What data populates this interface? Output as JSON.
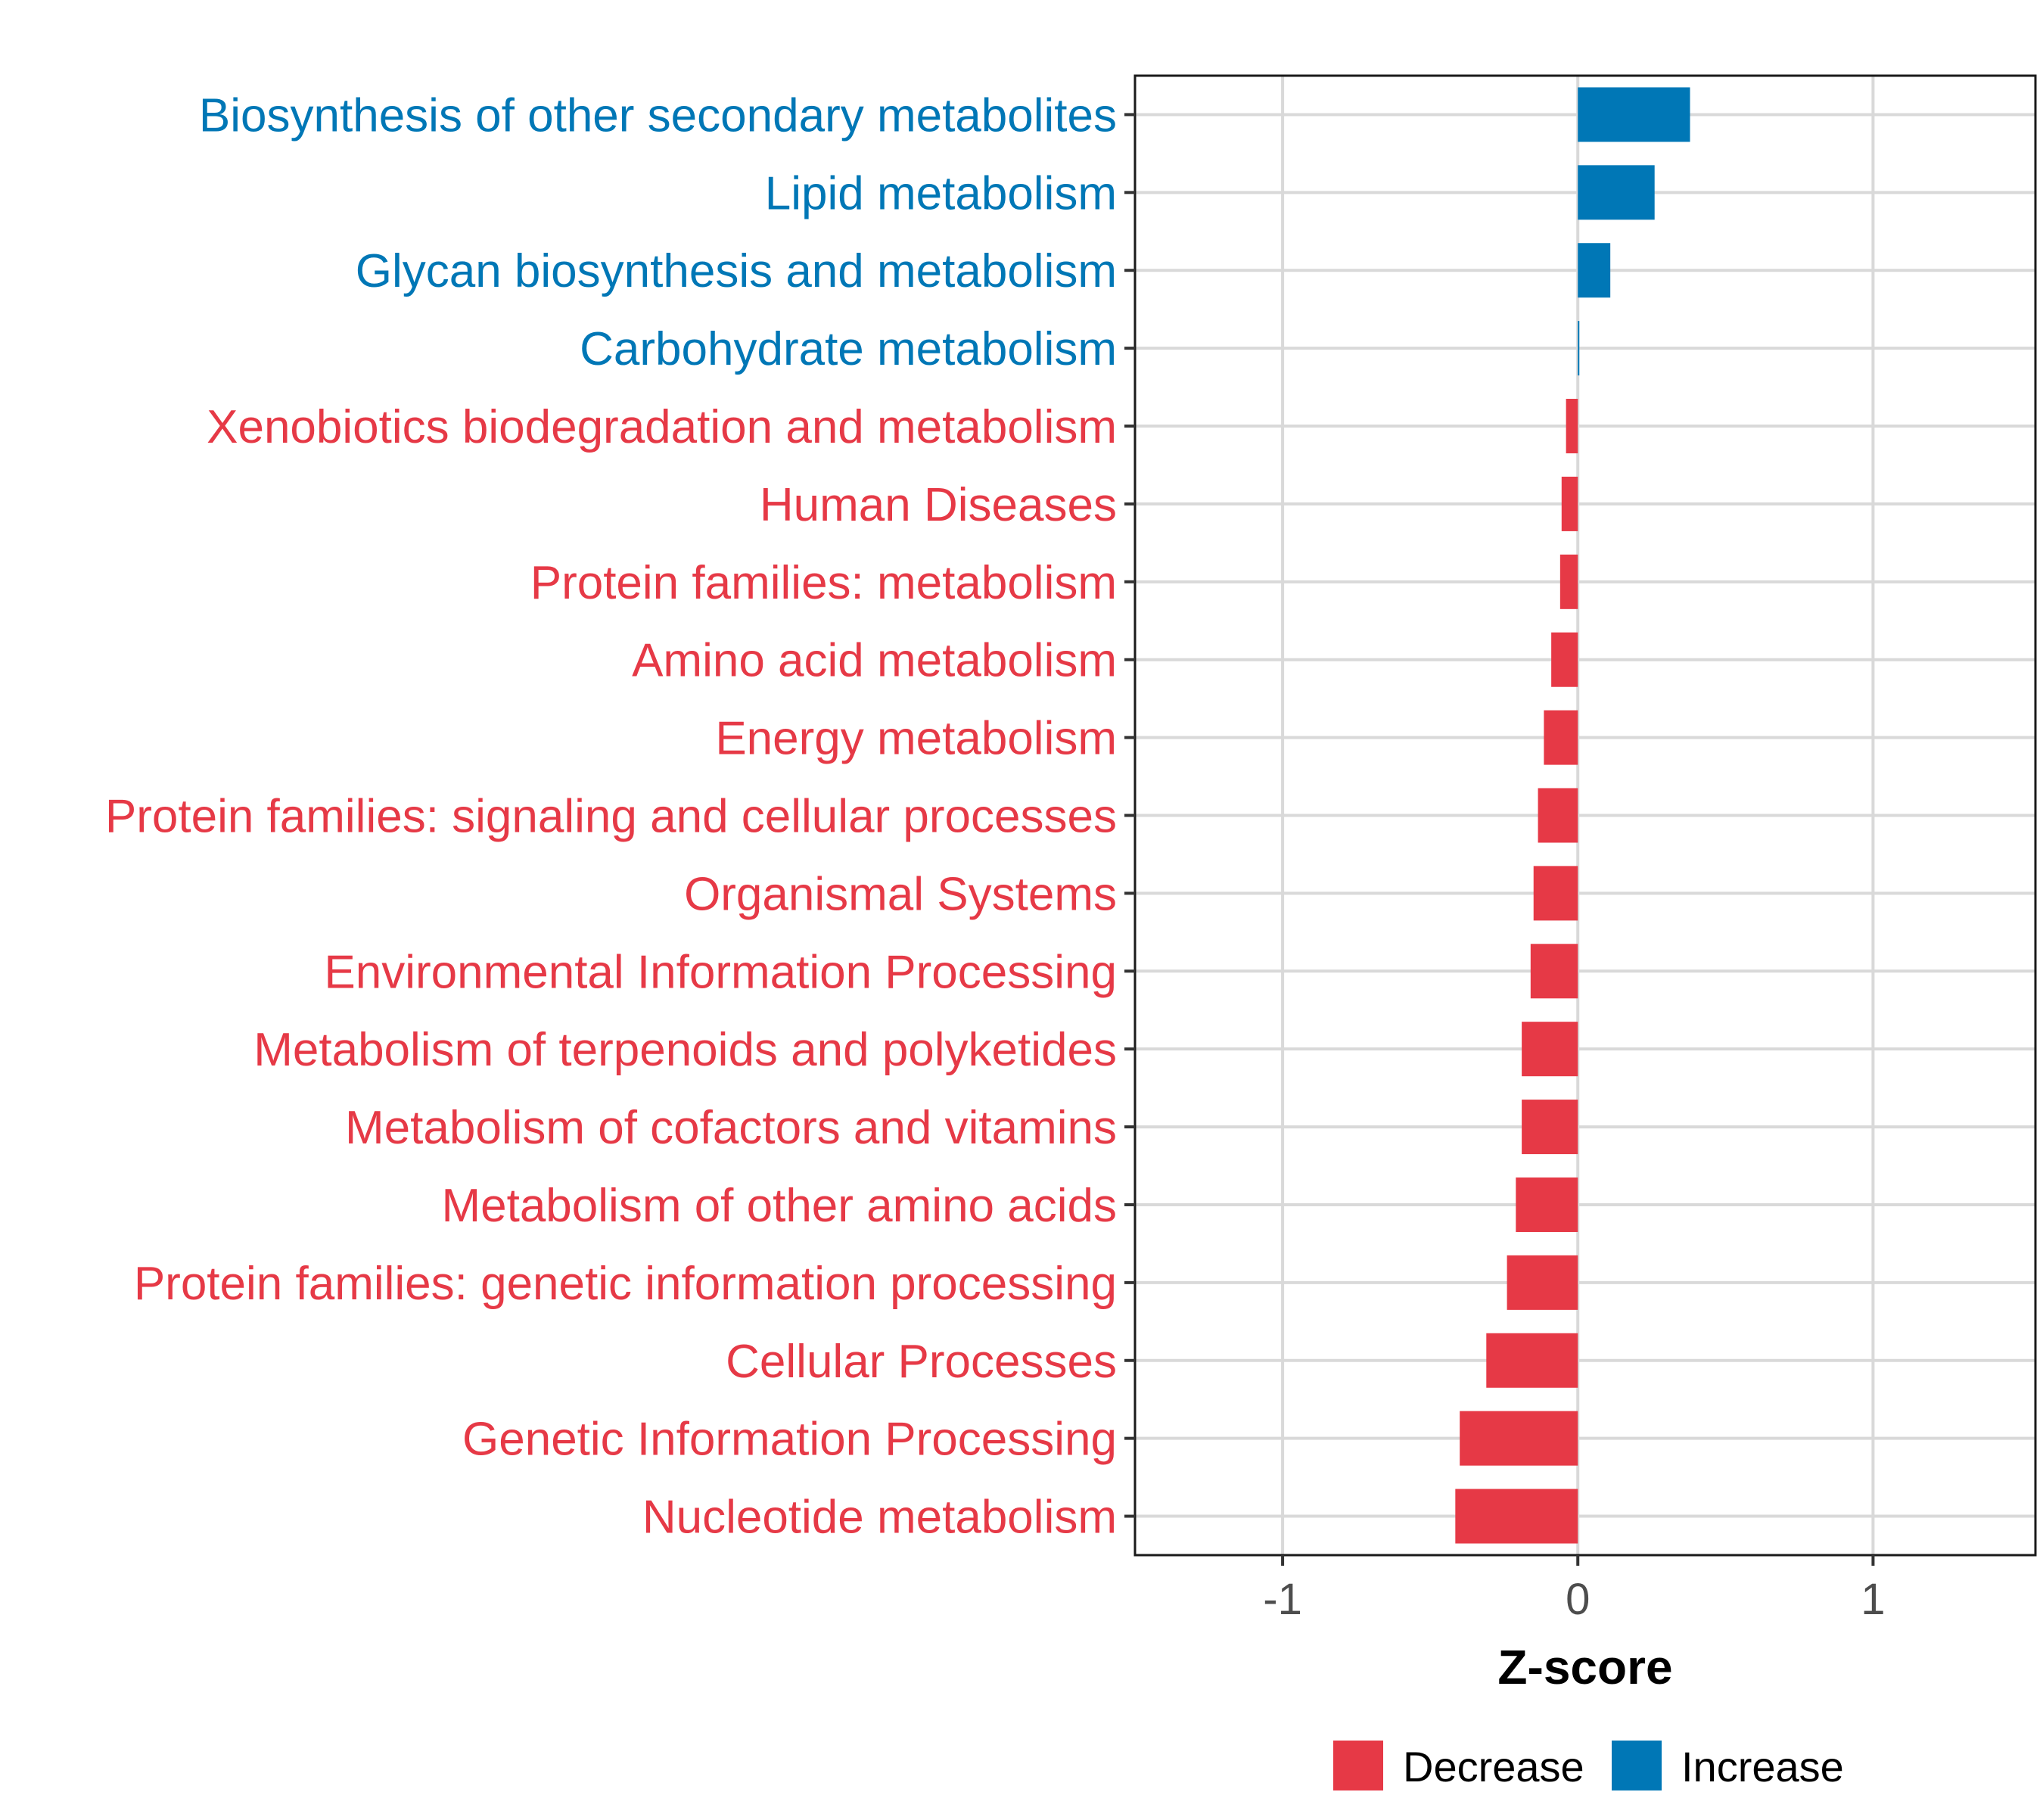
{
  "chart_data": {
    "type": "bar",
    "orientation": "horizontal",
    "xlabel": "Z-score",
    "ylabel": "",
    "xlim": [
      -1.5,
      1.55
    ],
    "xticks": [
      -1,
      0,
      1
    ],
    "xtick_labels": [
      "-1",
      "0",
      "1"
    ],
    "grid": true,
    "legend_position": "bottom",
    "legend": [
      {
        "label": "Decrease",
        "color": "#E63946"
      },
      {
        "label": "Increase",
        "color": "#0077B6"
      }
    ],
    "categories": [
      "Biosynthesis of other secondary metabolites",
      "Lipid metabolism",
      "Glycan biosynthesis and metabolism",
      "Carbohydrate metabolism",
      "Xenobiotics biodegradation and metabolism",
      "Human Diseases",
      "Protein families: metabolism",
      "Amino acid metabolism",
      "Energy metabolism",
      "Protein families: signaling and cellular processes",
      "Organismal Systems",
      "Environmental Information Processing",
      "Metabolism of terpenoids and polyketides",
      "Metabolism of cofactors and vitamins",
      "Metabolism of other amino acids",
      "Protein families: genetic information processing",
      "Cellular Processes",
      "Genetic Information Processing",
      "Nucleotide metabolism"
    ],
    "values": [
      0.38,
      0.26,
      0.11,
      0.005,
      -0.04,
      -0.055,
      -0.06,
      -0.09,
      -0.115,
      -0.135,
      -0.15,
      -0.16,
      -0.19,
      -0.19,
      -0.21,
      -0.24,
      -0.31,
      -0.4,
      -0.415
    ],
    "groups": [
      "Increase",
      "Increase",
      "Increase",
      "Increase",
      "Decrease",
      "Decrease",
      "Decrease",
      "Decrease",
      "Decrease",
      "Decrease",
      "Decrease",
      "Decrease",
      "Decrease",
      "Decrease",
      "Decrease",
      "Decrease",
      "Decrease",
      "Decrease",
      "Decrease"
    ]
  }
}
